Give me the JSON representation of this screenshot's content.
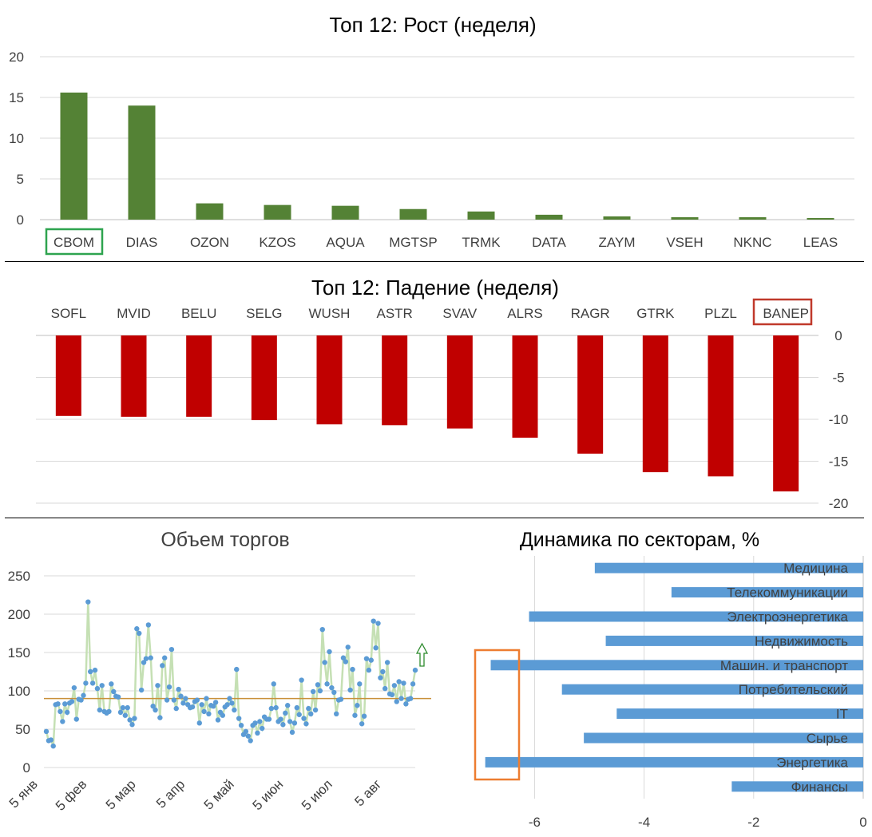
{
  "colors": {
    "gain_bar": "#548235",
    "loss_bar": "#c00000",
    "volume_line": "#c5e0b4",
    "volume_point": "#5b9bd5",
    "average_line": "#c9903a",
    "sector_bar": "#5b9bd5",
    "highlight_green": "#2ea44f",
    "highlight_red": "#c0392b",
    "highlight_orange": "#ed7d31",
    "arrow": "#2e8b2e",
    "gridline": "#d9d9d9",
    "divider": "#000000"
  },
  "chart_data": [
    {
      "type": "bar",
      "title": "Топ 12: Рост (неделя)",
      "categories": [
        "CBOM",
        "DIAS",
        "OZON",
        "KZOS",
        "AQUA",
        "MGTSP",
        "TRMK",
        "DATA",
        "ZAYM",
        "VSEH",
        "NKNC",
        "LEAS"
      ],
      "values": [
        15.6,
        14.0,
        2.0,
        1.8,
        1.7,
        1.3,
        1.0,
        0.6,
        0.4,
        0.3,
        0.3,
        0.2
      ],
      "ylim": [
        0,
        20
      ],
      "yticks": [
        "0",
        "5",
        "10",
        "15",
        "20"
      ],
      "highlighted_category": "CBOM",
      "grid": true
    },
    {
      "type": "bar",
      "title": "Топ 12: Падение (неделя)",
      "categories": [
        "SOFL",
        "MVID",
        "BELU",
        "SELG",
        "WUSH",
        "ASTR",
        "SVAV",
        "ALRS",
        "RAGR",
        "GTRK",
        "PLZL",
        "BANEP"
      ],
      "values": [
        -9.6,
        -9.7,
        -9.7,
        -10.1,
        -10.6,
        -10.7,
        -11.1,
        -12.2,
        -14.1,
        -16.3,
        -16.8,
        -18.6
      ],
      "ylim": [
        -20,
        0
      ],
      "yticks": [
        "0",
        "-5",
        "-10",
        "-15",
        "-20"
      ],
      "axis_position": "right",
      "highlighted_category": "BANEP",
      "grid": true
    },
    {
      "type": "line",
      "title": "Объем торгов",
      "ylim": [
        0,
        250
      ],
      "yticks": [
        "0",
        "50",
        "100",
        "150",
        "200",
        "250"
      ],
      "xticks": [
        "5 янв",
        "5 фев",
        "5 мар",
        "5 апр",
        "5 май",
        "5 июн",
        "5 июл",
        "5 авг"
      ],
      "average": 90,
      "trend_arrow": "up",
      "values": [
        47,
        35,
        36,
        28,
        82,
        83,
        73,
        60,
        83,
        72,
        84,
        86,
        104,
        63,
        89,
        88,
        94,
        110,
        216,
        125,
        110,
        127,
        103,
        75,
        107,
        73,
        71,
        73,
        109,
        99,
        93,
        92,
        72,
        78,
        68,
        78,
        62,
        56,
        64,
        181,
        175,
        101,
        137,
        142,
        186,
        143,
        80,
        75,
        107,
        65,
        133,
        143,
        88,
        105,
        154,
        88,
        77,
        102,
        93,
        84,
        90,
        82,
        78,
        79,
        86,
        88,
        58,
        82,
        73,
        90,
        70,
        81,
        80,
        85,
        62,
        72,
        68,
        79,
        82,
        90,
        84,
        75,
        128,
        64,
        55,
        43,
        47,
        41,
        35,
        55,
        58,
        45,
        60,
        51,
        66,
        63,
        63,
        77,
        109,
        78,
        60,
        63,
        56,
        71,
        81,
        60,
        46,
        58,
        78,
        69,
        114,
        64,
        57,
        77,
        70,
        99,
        75,
        108,
        100,
        180,
        137,
        109,
        151,
        104,
        98,
        70,
        88,
        89,
        143,
        138,
        157,
        101,
        128,
        68,
        81,
        109,
        57,
        67,
        142,
        127,
        140,
        191,
        156,
        188,
        117,
        125,
        103,
        137,
        96,
        95,
        107,
        86,
        112,
        90,
        110,
        83,
        89,
        90,
        109,
        127
      ],
      "grid": true
    },
    {
      "type": "bar",
      "orientation": "horizontal",
      "title": "Динамика по секторам, %",
      "categories": [
        "Медицина",
        "Телекоммуникации",
        "Электроэнергетика",
        "Недвижимость",
        "Машин. и транспорт",
        "Потребительский",
        "IT",
        "Сырье",
        "Энергетика",
        "Финансы"
      ],
      "values": [
        -4.9,
        -3.5,
        -6.1,
        -4.7,
        -6.8,
        -5.5,
        -4.5,
        -5.1,
        -6.9,
        -2.4
      ],
      "xlim": [
        -7,
        0
      ],
      "xticks": [
        "-6",
        "-4",
        "-2",
        "0"
      ],
      "highlighted_categories": [
        "Машин. и транспорт",
        "Энергетика"
      ],
      "grid": true
    }
  ]
}
